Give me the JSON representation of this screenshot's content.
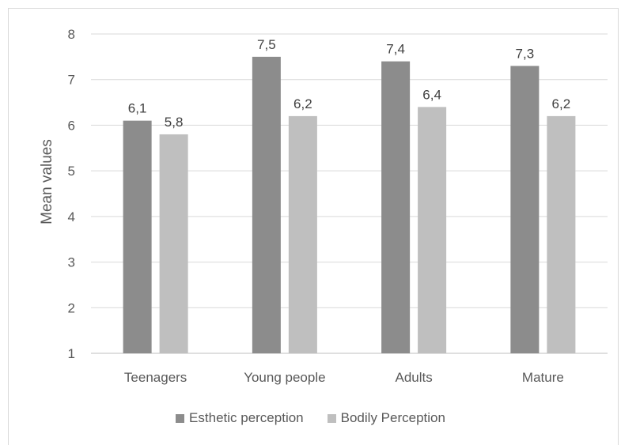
{
  "chart_data": {
    "type": "bar",
    "categories": [
      "Teenagers",
      "Young people",
      "Adults",
      "Mature"
    ],
    "series": [
      {
        "name": "Esthetic perception",
        "values": [
          6.1,
          7.5,
          7.4,
          7.3
        ],
        "color": "#8c8c8c"
      },
      {
        "name": "Bodily Perception",
        "values": [
          5.8,
          6.2,
          6.4,
          6.2
        ],
        "color": "#bfbfbf"
      }
    ],
    "data_labels": [
      [
        "6,1",
        "7,5",
        "7,4",
        "7,3"
      ],
      [
        "5,8",
        "6,2",
        "6,4",
        "6,2"
      ]
    ],
    "ylabel": "Mean values",
    "ylim": [
      1,
      8
    ],
    "yticks": [
      "1",
      "2",
      "3",
      "4",
      "5",
      "6",
      "7",
      "8"
    ],
    "grid": true,
    "legend_position": "bottom"
  }
}
